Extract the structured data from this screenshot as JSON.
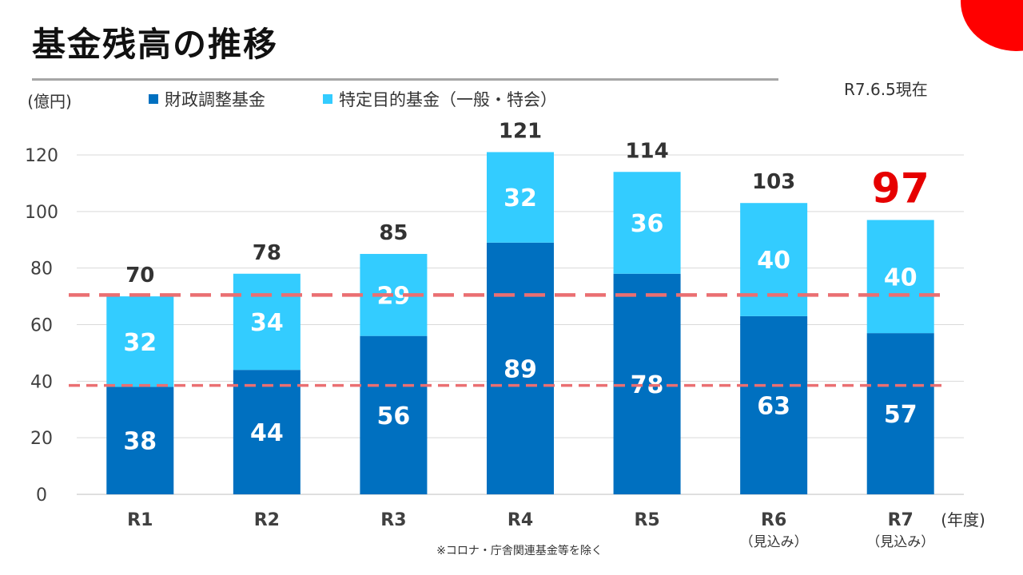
{
  "title": "基金残高の推移",
  "as_of": "R7.6.5現在",
  "footnote": "※コロナ・庁舎関連基金等を除く",
  "colors": {
    "accent": "#ff0000",
    "dark_blue": "#0070c0",
    "light_blue": "#33ccff",
    "dashed_line": "#ea6f72",
    "highlight_total": "#e60000"
  },
  "chart_data": {
    "type": "bar",
    "stacked": true,
    "categories": [
      "R1",
      "R2",
      "R3",
      "R4",
      "R5",
      "R6",
      "R7"
    ],
    "category_sublabels": [
      "",
      "",
      "",
      "",
      "",
      "（見込み）",
      "（見込み）"
    ],
    "series": [
      {
        "name": "財政調整基金",
        "values": [
          38,
          44,
          56,
          89,
          78,
          63,
          57
        ],
        "color": "#0070c0"
      },
      {
        "name": "特定目的基金（一般・特会）",
        "values": [
          32,
          34,
          29,
          32,
          36,
          40,
          40
        ],
        "color": "#33ccff"
      }
    ],
    "totals": [
      "70",
      "78",
      "85",
      "121",
      "114",
      "103",
      "97"
    ],
    "highlight_total_index": 6,
    "y_unit": "(億円)",
    "x_unit": "(年度)",
    "ylim": [
      0,
      120
    ],
    "yticks": [
      0,
      20,
      40,
      60,
      80,
      100,
      120
    ],
    "grid": true,
    "legend_position": "top",
    "reference_lines": [
      70.5,
      38.5
    ]
  }
}
